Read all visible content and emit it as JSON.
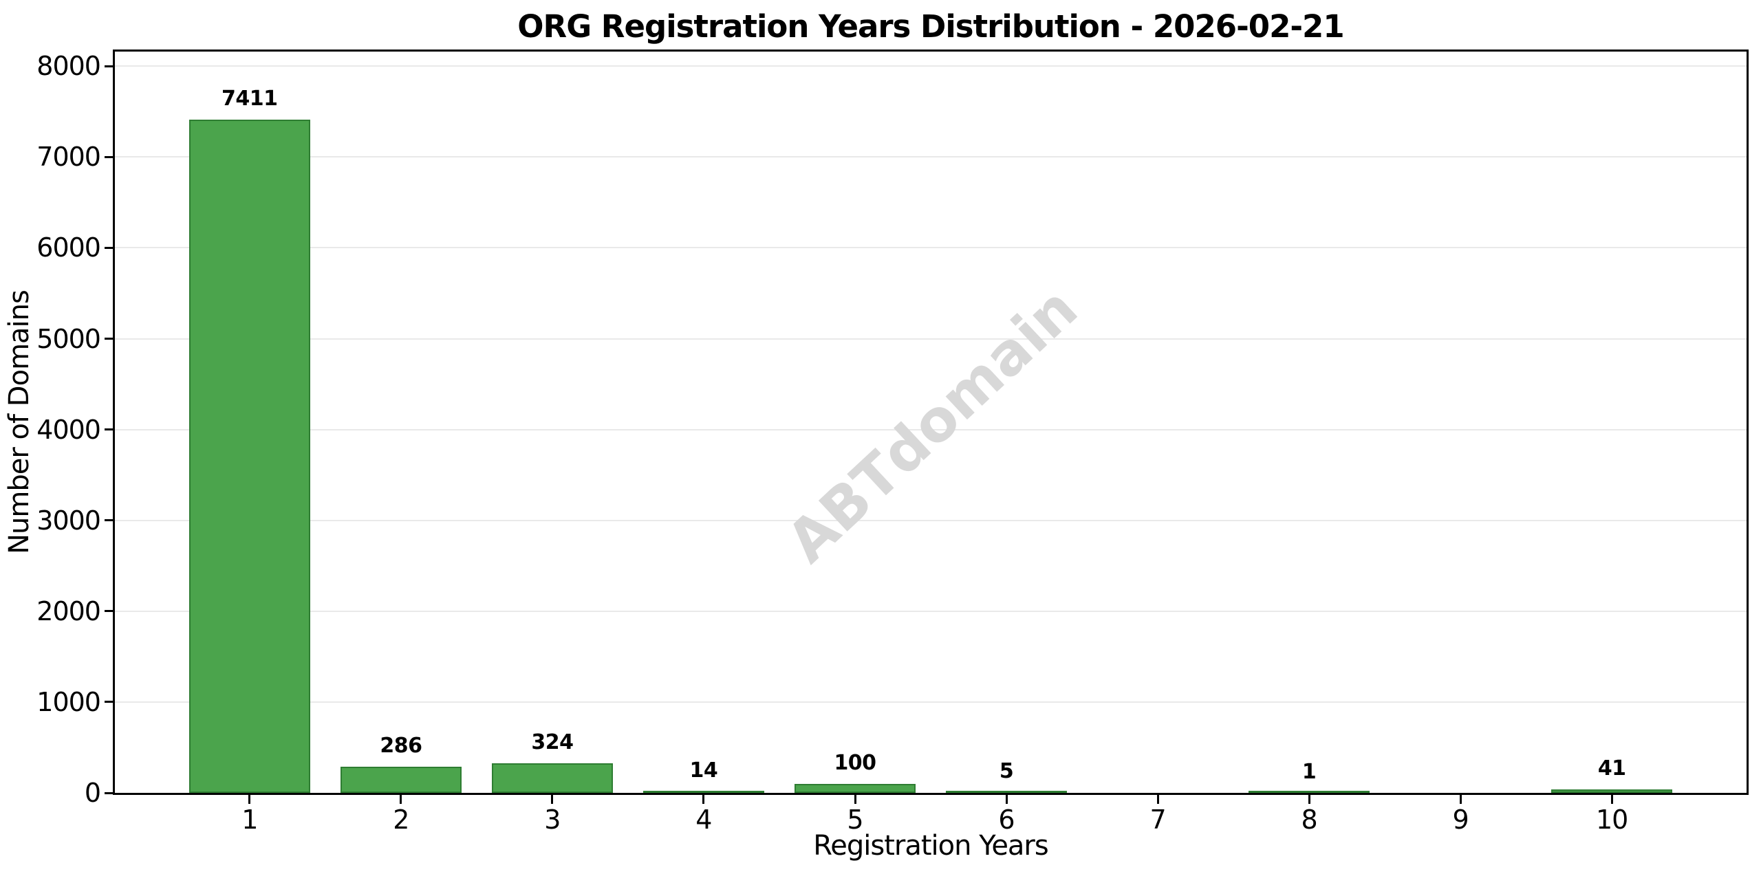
{
  "chart_data": {
    "type": "bar",
    "title": "ORG Registration Years Distribution - 2026-02-21",
    "xlabel": "Registration Years",
    "ylabel": "Number of Domains",
    "watermark": "ABTdomain",
    "categories": [
      "1",
      "2",
      "3",
      "4",
      "5",
      "6",
      "7",
      "8",
      "9",
      "10"
    ],
    "values": [
      7411,
      286,
      324,
      14,
      100,
      5,
      0,
      1,
      0,
      41
    ],
    "bar_labels": [
      "7411",
      "286",
      "324",
      "14",
      "100",
      "5",
      "",
      "1",
      "",
      "41"
    ],
    "yticks": [
      0,
      1000,
      2000,
      3000,
      4000,
      5000,
      6000,
      7000,
      8000
    ],
    "ytick_labels": [
      "0",
      "1000",
      "2000",
      "3000",
      "4000",
      "5000",
      "6000",
      "7000",
      "8000"
    ],
    "ylim": [
      0,
      8160
    ],
    "grid": "horizontal-major-only",
    "legend": "none",
    "colors": {
      "bar_fill": "#4BA44C",
      "bar_edge": "#2E7D32",
      "grid": "#E9E9E9",
      "axis": "#000000",
      "text": "#000000",
      "watermark": "#D8D8D8",
      "background": "#FFFFFF"
    }
  }
}
